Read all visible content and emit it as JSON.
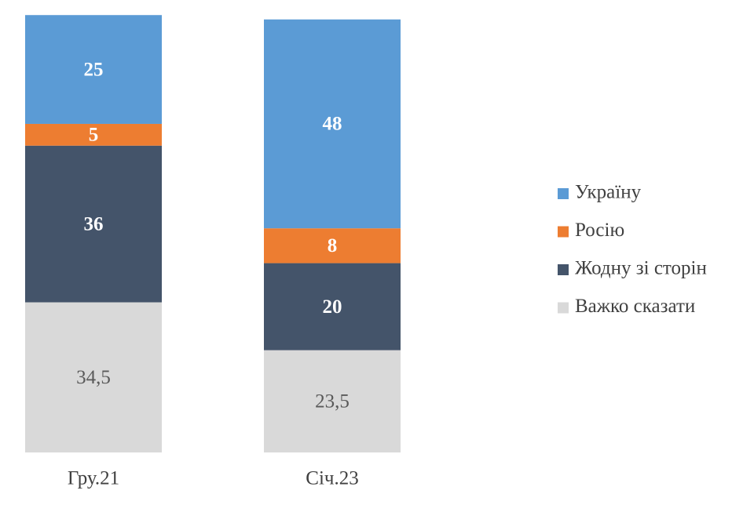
{
  "chart_data": {
    "type": "stacked_bar",
    "categories": [
      "Гру.21",
      "Січ.23"
    ],
    "ylim": [
      0,
      100
    ],
    "series": [
      {
        "name": "Україну",
        "color": "#5b9bd5",
        "values": [
          25,
          48
        ]
      },
      {
        "name": "Росію",
        "color": "#ed7d31",
        "values": [
          5,
          8
        ]
      },
      {
        "name": "Жодну зі сторін",
        "color": "#44546a",
        "values": [
          36,
          20
        ]
      },
      {
        "name": "Важко сказати",
        "color": "#d9d9d9",
        "values": [
          34.5,
          23.5
        ],
        "value_labels": [
          "34,5",
          "23,5"
        ]
      }
    ]
  }
}
